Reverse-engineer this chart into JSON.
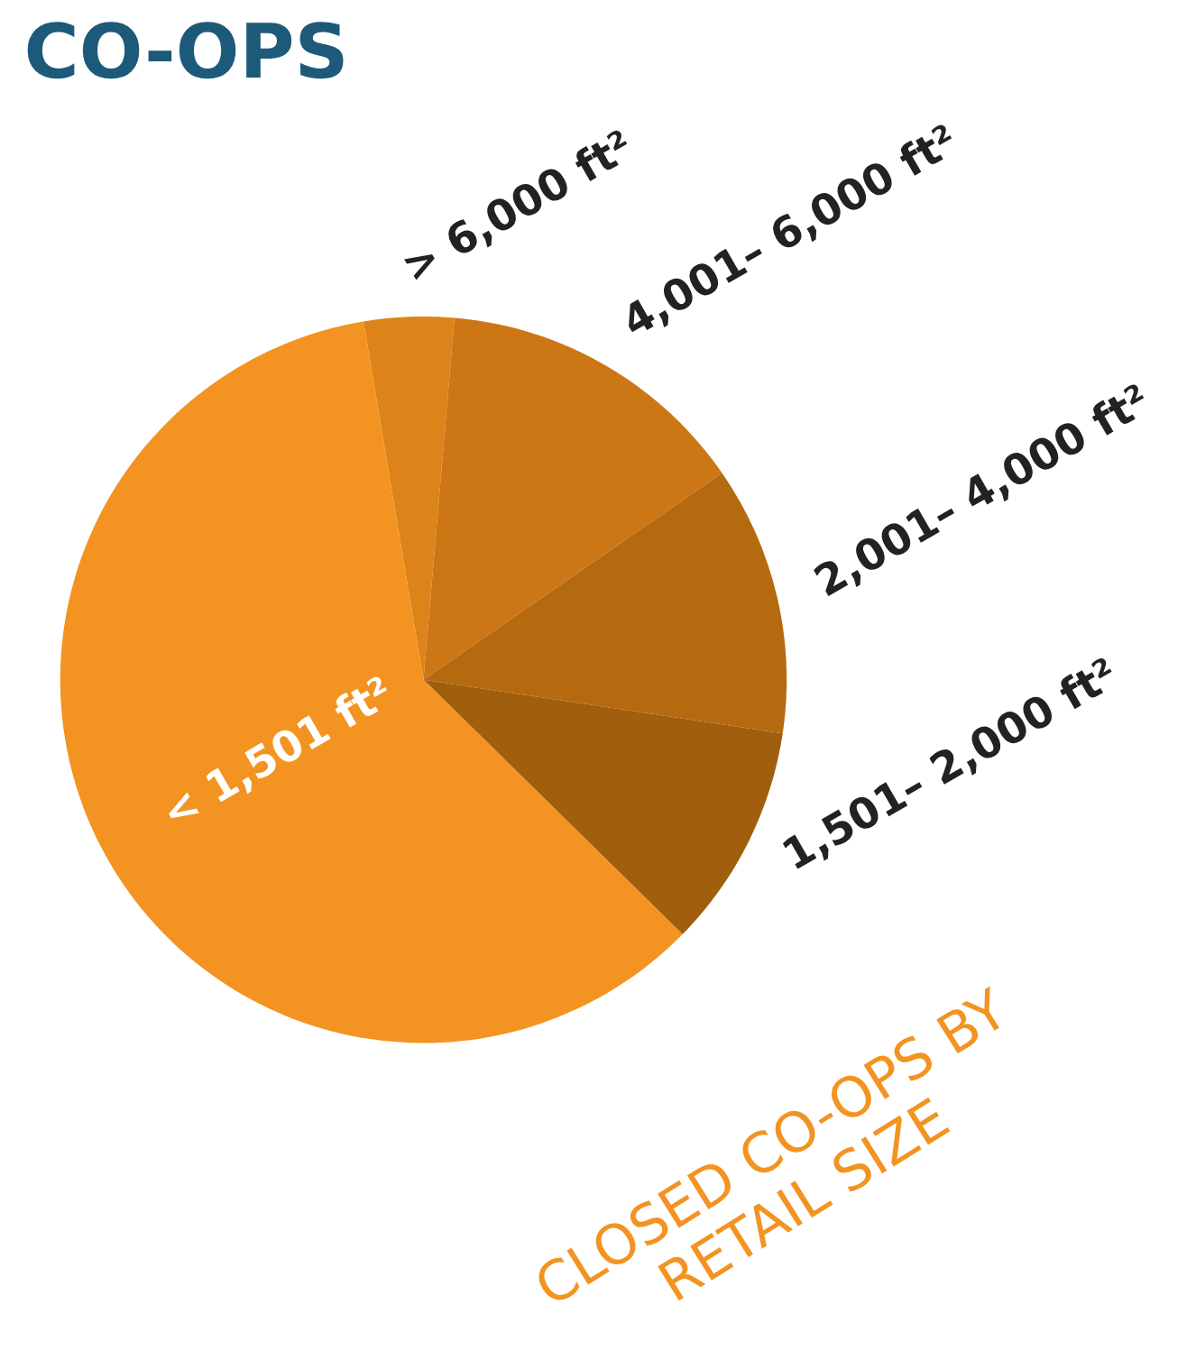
{
  "chart_data": {
    "type": "pie",
    "title": "CO-OPS",
    "categories": [
      "> 6,000 ft²",
      "4,001– 6,000 ft²",
      "2,001– 4,000 ft²",
      "1,501– 2,000 ft²",
      "< 1,501 ft²"
    ],
    "values": [
      4,
      14,
      12,
      10,
      60
    ],
    "colors": [
      "#dc8419",
      "#cc7616",
      "#b56a10",
      "#a15e0c",
      "#f39321"
    ],
    "annotations": [
      "CLOSED CO-OPS BY\nRETAIL SIZE"
    ]
  }
}
